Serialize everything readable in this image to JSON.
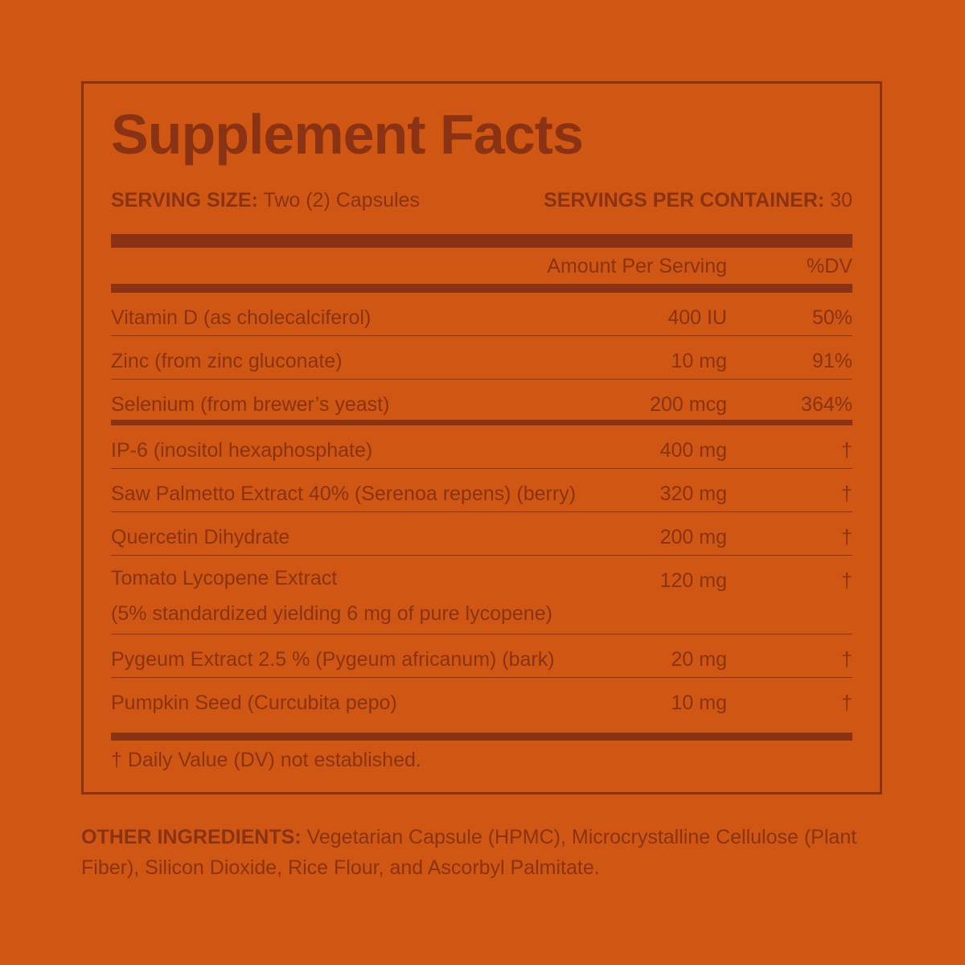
{
  "title": "Supplement Facts",
  "serving": {
    "size_label": "SERVING SIZE:",
    "size_value": "Two (2) Capsules",
    "per_container_label": "SERVINGS PER CONTAINER:",
    "per_container_value": "30"
  },
  "columns": {
    "amount": "Amount Per Serving",
    "dv": "%DV"
  },
  "rows": [
    {
      "name": "Vitamin D (as cholecalciferol)",
      "amount": "400 IU",
      "dv": "50%"
    },
    {
      "name": "Zinc (from zinc gluconate)",
      "amount": "10 mg",
      "dv": "91%"
    },
    {
      "name": "Selenium (from brewer’s yeast)",
      "amount": "200 mcg",
      "dv": "364%"
    },
    {
      "name": "IP-6 (inositol hexaphosphate)",
      "amount": "400 mg",
      "dv": "†"
    },
    {
      "name": "Saw Palmetto Extract 40% (Serenoa repens) (berry)",
      "amount": "320 mg",
      "dv": "†"
    },
    {
      "name": "Quercetin Dihydrate",
      "amount": "200 mg",
      "dv": "†"
    },
    {
      "name": "Tomato Lycopene Extract",
      "name_line2": "(5% standardized yielding 6 mg of pure lycopene)",
      "amount": "120 mg",
      "dv": "†"
    },
    {
      "name": "Pygeum Extract 2.5 % (Pygeum africanum) (bark)",
      "amount": "20 mg",
      "dv": "†"
    },
    {
      "name": "Pumpkin Seed (Curcubita pepo)",
      "amount": "10 mg",
      "dv": "†"
    }
  ],
  "footnote": "† Daily Value (DV) not established.",
  "other_ingredients": {
    "label": "OTHER INGREDIENTS:",
    "text": " Vegetarian Capsule (HPMC), Microcrystalline Cellulose (Plant Fiber), Silicon Dioxide, Rice Flour, and Ascorbyl Palmitate."
  },
  "colors": {
    "background": "#D05713",
    "ink": "#8A3314"
  }
}
